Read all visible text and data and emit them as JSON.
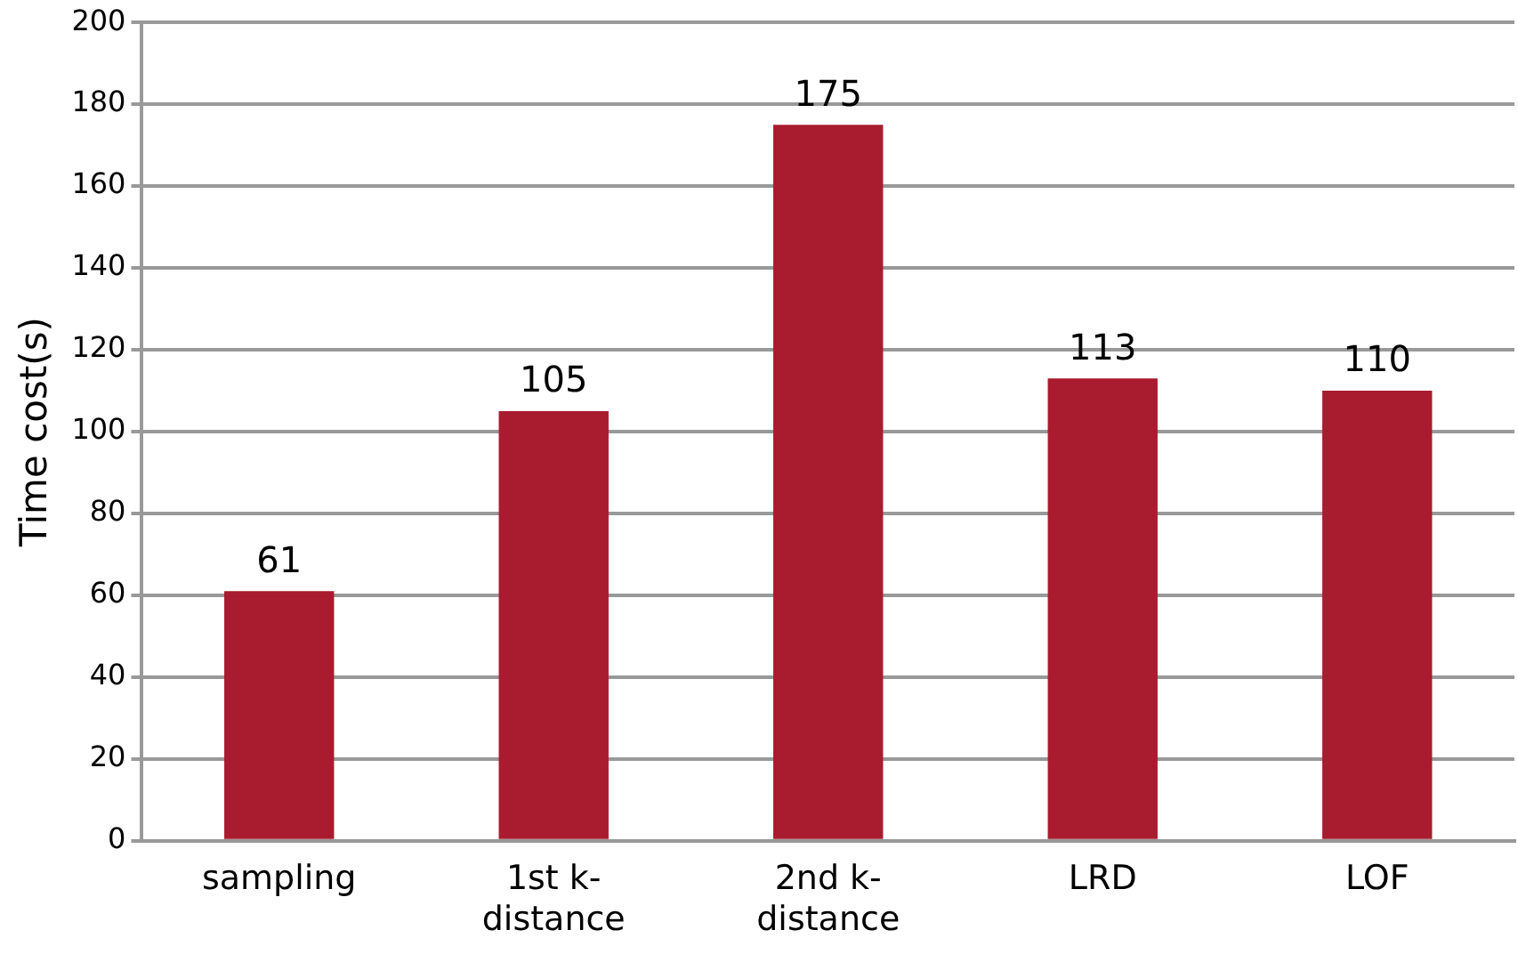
{
  "chart_data": {
    "type": "bar",
    "ylabel": "Time cost(s)",
    "categories": [
      "sampling",
      "1st k-distance",
      "2nd k-distance",
      "LRD",
      "LOF"
    ],
    "values": [
      61,
      105,
      175,
      113,
      110
    ],
    "color": "#a91b2e",
    "ylim": [
      0,
      200
    ],
    "yticks": [
      0,
      20,
      40,
      60,
      80,
      100,
      120,
      140,
      160,
      180,
      200
    ],
    "grid": "y",
    "data_labels": true,
    "legend": false
  }
}
